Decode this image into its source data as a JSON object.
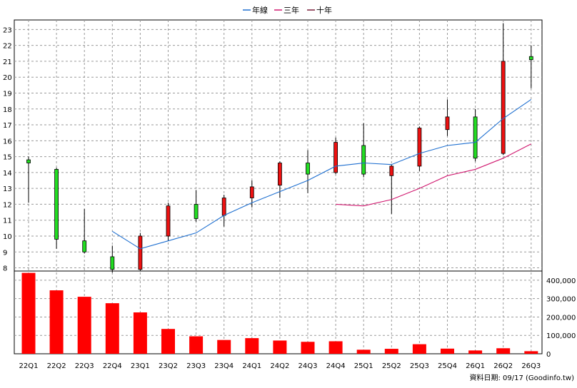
{
  "legend": {
    "items": [
      {
        "label": "年線",
        "color": "#1e6fd0"
      },
      {
        "label": "三年",
        "color": "#d0186f"
      },
      {
        "label": "十年",
        "color": "#7a1f3a"
      }
    ]
  },
  "footer": {
    "source": "資料日期: 09/17  (Goodinfo.tw)"
  },
  "chart_data": [
    {
      "type": "candlestick",
      "title": "",
      "categories": [
        "22Q1",
        "22Q2",
        "22Q3",
        "22Q4",
        "23Q1",
        "23Q2",
        "23Q3",
        "23Q4",
        "24Q1",
        "24Q2",
        "24Q3",
        "24Q4",
        "25Q1",
        "25Q2",
        "25Q3",
        "25Q4",
        "26Q1",
        "26Q2",
        "26Q3"
      ],
      "ylim": [
        7.8,
        23.6
      ],
      "yticks": [
        8,
        9,
        10,
        11,
        12,
        13,
        14,
        15,
        16,
        17,
        18,
        19,
        20,
        21,
        22,
        23
      ],
      "grid": true,
      "candles": [
        {
          "open": 14.6,
          "close": 14.8,
          "high": 15.0,
          "low": 12.1
        },
        {
          "open": 9.8,
          "close": 14.2,
          "high": 14.3,
          "low": 9.2
        },
        {
          "open": 9.0,
          "close": 9.7,
          "high": 11.7,
          "low": 8.9
        },
        {
          "open": 7.9,
          "close": 8.7,
          "high": 9.4,
          "low": 7.7
        },
        {
          "open": 10.0,
          "close": 7.9,
          "high": 10.2,
          "low": 7.8
        },
        {
          "open": 11.9,
          "close": 10.0,
          "high": 12.1,
          "low": 9.7
        },
        {
          "open": 11.1,
          "close": 12.0,
          "high": 12.9,
          "low": 10.9
        },
        {
          "open": 12.4,
          "close": 11.3,
          "high": 12.6,
          "low": 10.6
        },
        {
          "open": 13.1,
          "close": 12.4,
          "high": 13.5,
          "low": 11.8
        },
        {
          "open": 14.6,
          "close": 13.2,
          "high": 14.7,
          "low": 12.4
        },
        {
          "open": 13.9,
          "close": 14.6,
          "high": 15.4,
          "low": 12.7
        },
        {
          "open": 15.9,
          "close": 14.0,
          "high": 16.2,
          "low": 13.9
        },
        {
          "open": 13.9,
          "close": 15.7,
          "high": 17.1,
          "low": 13.7
        },
        {
          "open": 14.4,
          "close": 13.8,
          "high": 14.5,
          "low": 11.4
        },
        {
          "open": 16.8,
          "close": 14.4,
          "high": 16.9,
          "low": 14.1
        },
        {
          "open": 17.5,
          "close": 16.7,
          "high": 18.6,
          "low": 16.3
        },
        {
          "open": 14.9,
          "close": 17.5,
          "high": 18.0,
          "low": 14.7
        },
        {
          "open": 21.0,
          "close": 15.2,
          "high": 23.4,
          "low": 15.1
        },
        {
          "open": 21.1,
          "close": 21.3,
          "high": 22.0,
          "low": 19.3
        }
      ],
      "series": [
        {
          "name": "年線",
          "values": [
            null,
            null,
            null,
            10.3,
            9.2,
            9.7,
            10.2,
            11.3,
            12.1,
            12.8,
            13.5,
            14.4,
            14.6,
            14.5,
            15.2,
            15.7,
            15.9,
            17.4,
            18.6
          ]
        },
        {
          "name": "三年",
          "values": [
            null,
            null,
            null,
            null,
            null,
            null,
            null,
            null,
            null,
            null,
            null,
            12.0,
            11.9,
            12.3,
            13.0,
            13.8,
            14.2,
            14.9,
            15.8
          ]
        }
      ]
    },
    {
      "type": "bar",
      "title": "",
      "categories": [
        "22Q1",
        "22Q2",
        "22Q3",
        "22Q4",
        "23Q1",
        "23Q2",
        "23Q3",
        "23Q4",
        "24Q1",
        "24Q2",
        "24Q3",
        "24Q4",
        "25Q1",
        "25Q2",
        "25Q3",
        "25Q4",
        "26Q1",
        "26Q2",
        "26Q3"
      ],
      "values": [
        440000,
        345000,
        310000,
        275000,
        225000,
        135000,
        95000,
        75000,
        85000,
        72000,
        65000,
        68000,
        22000,
        27000,
        52000,
        28000,
        18000,
        30000,
        14000
      ],
      "ylim": [
        0,
        450000
      ],
      "ytick_labels": [
        "0",
        "100,000",
        "200,000",
        "300,000",
        "400,000"
      ],
      "ytick_values": [
        0,
        100000,
        200000,
        300000,
        400000
      ],
      "color": "#ff0000"
    }
  ]
}
